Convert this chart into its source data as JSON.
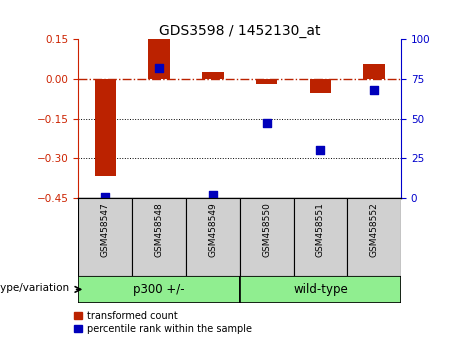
{
  "title": "GDS3598 / 1452130_at",
  "samples": [
    "GSM458547",
    "GSM458548",
    "GSM458549",
    "GSM458550",
    "GSM458551",
    "GSM458552"
  ],
  "group_names": [
    "p300 +/-",
    "wild-type"
  ],
  "group_starts": [
    0,
    3
  ],
  "group_ends": [
    2,
    5
  ],
  "group_color": "#90EE90",
  "transformed_count": [
    -0.365,
    0.148,
    0.025,
    -0.02,
    -0.055,
    0.055
  ],
  "percentile_rank": [
    1,
    82,
    2,
    47,
    30,
    68
  ],
  "ylim_left": [
    -0.45,
    0.15
  ],
  "ylim_right": [
    0,
    100
  ],
  "yticks_left": [
    0.15,
    0.0,
    -0.15,
    -0.3,
    -0.45
  ],
  "yticks_right": [
    100,
    75,
    50,
    25,
    0
  ],
  "bar_color": "#BB2200",
  "dot_color": "#0000BB",
  "left_axis_color": "#CC2200",
  "right_axis_color": "#0000CC",
  "legend_items": [
    "transformed count",
    "percentile rank within the sample"
  ],
  "group_label": "genotype/variation",
  "sample_box_color": "#D0D0D0",
  "dot_size": 30,
  "bar_width": 0.4
}
